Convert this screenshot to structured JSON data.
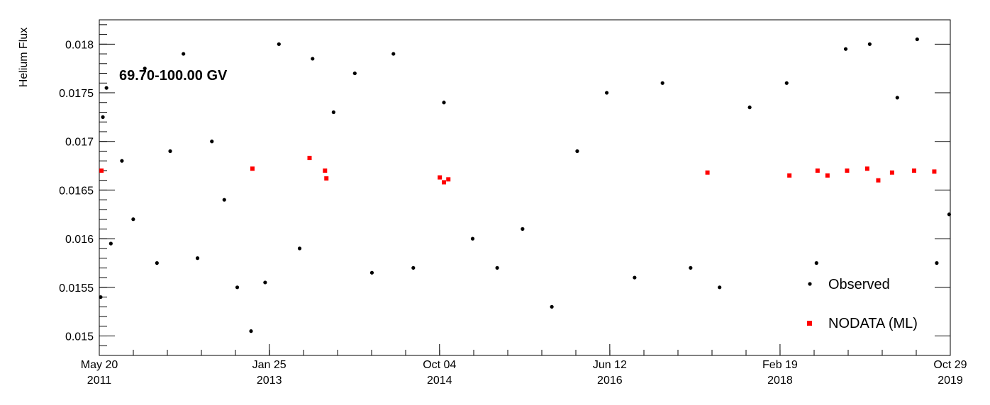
{
  "chart_data": {
    "type": "scatter",
    "title": "",
    "annotation": "69.70-100.00 GV",
    "xlabel": "",
    "ylabel": "Helium Flux",
    "xlim": [
      "2011-05-20",
      "2019-10-29"
    ],
    "ylim": [
      0.0148,
      0.01825
    ],
    "x_ticks": [
      {
        "date": "2011-05-20",
        "line1": "May 20",
        "line2": "2011"
      },
      {
        "date": "2013-01-25",
        "line1": "Jan 25",
        "line2": "2013"
      },
      {
        "date": "2014-10-04",
        "line1": "Oct 04",
        "line2": "2014"
      },
      {
        "date": "2016-06-12",
        "line1": "Jun 12",
        "line2": "2016"
      },
      {
        "date": "2018-02-19",
        "line1": "Feb 19",
        "line2": "2018"
      },
      {
        "date": "2019-10-29",
        "line1": "Oct 29",
        "line2": "2019"
      }
    ],
    "y_ticks": [
      {
        "value": 0.015,
        "label": "0.015"
      },
      {
        "value": 0.0155,
        "label": "0.0155"
      },
      {
        "value": 0.016,
        "label": "0.016"
      },
      {
        "value": 0.0165,
        "label": "0.0165"
      },
      {
        "value": 0.017,
        "label": "0.017"
      },
      {
        "value": 0.0175,
        "label": "0.0175"
      },
      {
        "value": 0.018,
        "label": "0.018"
      }
    ],
    "grid": false,
    "legend_position": "bottom-right",
    "series": [
      {
        "name": "Observed",
        "marker": "circle",
        "color": "#000000",
        "points": [
          [
            "2011-05-25",
            0.0154
          ],
          [
            "2011-06-02",
            0.01725
          ],
          [
            "2011-06-15",
            0.01755
          ],
          [
            "2011-07-01",
            0.01595
          ],
          [
            "2011-08-10",
            0.0168
          ],
          [
            "2011-09-20",
            0.0162
          ],
          [
            "2011-11-01",
            0.01775
          ],
          [
            "2011-12-15",
            0.01575
          ],
          [
            "2012-02-01",
            0.0169
          ],
          [
            "2012-03-20",
            0.0179
          ],
          [
            "2012-05-10",
            0.0158
          ],
          [
            "2012-07-01",
            0.017
          ],
          [
            "2012-08-15",
            0.0164
          ],
          [
            "2012-10-01",
            0.0155
          ],
          [
            "2012-11-20",
            0.01505
          ],
          [
            "2013-01-10",
            0.01555
          ],
          [
            "2013-03-01",
            0.018
          ],
          [
            "2013-05-15",
            0.0159
          ],
          [
            "2013-07-01",
            0.01785
          ],
          [
            "2013-09-15",
            0.0173
          ],
          [
            "2013-12-01",
            0.0177
          ],
          [
            "2014-02-01",
            0.01565
          ],
          [
            "2014-04-20",
            0.0179
          ],
          [
            "2014-07-01",
            0.0157
          ],
          [
            "2014-10-20",
            0.0174
          ],
          [
            "2015-02-01",
            0.016
          ],
          [
            "2015-05-01",
            0.0157
          ],
          [
            "2015-08-01",
            0.0161
          ],
          [
            "2015-11-15",
            0.0153
          ],
          [
            "2016-02-15",
            0.0169
          ],
          [
            "2016-06-01",
            0.0175
          ],
          [
            "2016-09-10",
            0.0156
          ],
          [
            "2016-12-20",
            0.0176
          ],
          [
            "2017-04-01",
            0.0157
          ],
          [
            "2017-07-15",
            0.0155
          ],
          [
            "2017-11-01",
            0.01735
          ],
          [
            "2018-03-15",
            0.0176
          ],
          [
            "2018-07-01",
            0.01575
          ],
          [
            "2018-10-15",
            0.01795
          ],
          [
            "2019-01-10",
            0.018
          ],
          [
            "2019-04-20",
            0.01745
          ],
          [
            "2019-07-01",
            0.01805
          ],
          [
            "2019-09-10",
            0.01575
          ],
          [
            "2019-10-25",
            0.01625
          ]
        ]
      },
      {
        "name": "NODATA (ML)",
        "marker": "square",
        "color": "#ff0000",
        "points": [
          [
            "2011-05-28",
            0.0167
          ],
          [
            "2012-11-25",
            0.01672
          ],
          [
            "2013-06-20",
            0.01683
          ],
          [
            "2013-08-15",
            0.0167
          ],
          [
            "2013-08-20",
            0.01662
          ],
          [
            "2014-10-05",
            0.01663
          ],
          [
            "2014-10-20",
            0.01658
          ],
          [
            "2014-11-05",
            0.01661
          ],
          [
            "2017-06-01",
            0.01668
          ],
          [
            "2018-03-25",
            0.01665
          ],
          [
            "2018-07-05",
            0.0167
          ],
          [
            "2018-08-10",
            0.01665
          ],
          [
            "2018-10-20",
            0.0167
          ],
          [
            "2019-01-01",
            0.01672
          ],
          [
            "2019-02-10",
            0.0166
          ],
          [
            "2019-04-01",
            0.01668
          ],
          [
            "2019-06-20",
            0.0167
          ],
          [
            "2019-09-01",
            0.01669
          ]
        ]
      }
    ]
  },
  "legend": {
    "observed_label": "Observed",
    "nodata_label": "NODATA (ML)"
  }
}
